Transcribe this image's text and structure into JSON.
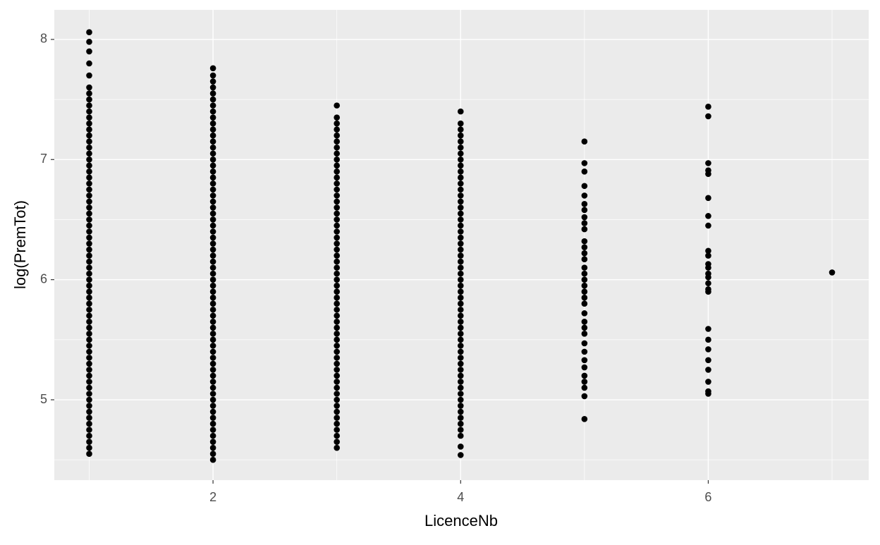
{
  "chart_data": {
    "type": "scatter",
    "color": "#000000",
    "x_label": "LicenceNb",
    "y_label": "log(PremTot)",
    "xlim": [
      0.718,
      7.296
    ],
    "ylim": [
      4.331,
      8.246
    ],
    "xticks": [
      2,
      4,
      6
    ],
    "yticks": [
      5,
      6,
      7,
      8
    ],
    "xminor": [
      1,
      3,
      5,
      7
    ],
    "yminor": [
      4.5,
      5.5,
      6.5,
      7.5
    ],
    "grid": true,
    "groups": [
      {
        "x": 1,
        "values": [
          4.55,
          4.6,
          4.65,
          4.7,
          4.75,
          4.8,
          4.85,
          4.9,
          4.95,
          5,
          5.05,
          5.1,
          5.15,
          5.2,
          5.25,
          5.3,
          5.35,
          5.4,
          5.45,
          5.5,
          5.55,
          5.6,
          5.65,
          5.7,
          5.75,
          5.8,
          5.85,
          5.9,
          5.95,
          6,
          6.05,
          6.1,
          6.15,
          6.2,
          6.25,
          6.3,
          6.35,
          6.4,
          6.45,
          6.5,
          6.55,
          6.6,
          6.65,
          6.7,
          6.75,
          6.8,
          6.85,
          6.9,
          6.95,
          7,
          7.05,
          7.1,
          7.15,
          7.2,
          7.25,
          7.3,
          7.35,
          7.4,
          7.45,
          7.5,
          7.55,
          7.6,
          7.7,
          7.8,
          7.9,
          7.98,
          8.06
        ]
      },
      {
        "x": 2,
        "values": [
          4.5,
          4.55,
          4.6,
          4.65,
          4.7,
          4.75,
          4.8,
          4.85,
          4.9,
          4.95,
          5,
          5.05,
          5.1,
          5.15,
          5.2,
          5.25,
          5.3,
          5.35,
          5.4,
          5.45,
          5.5,
          5.55,
          5.6,
          5.65,
          5.7,
          5.75,
          5.8,
          5.85,
          5.9,
          5.95,
          6,
          6.05,
          6.1,
          6.15,
          6.2,
          6.25,
          6.3,
          6.35,
          6.4,
          6.45,
          6.5,
          6.55,
          6.6,
          6.65,
          6.7,
          6.75,
          6.8,
          6.85,
          6.9,
          6.95,
          7,
          7.05,
          7.1,
          7.15,
          7.2,
          7.25,
          7.3,
          7.35,
          7.4,
          7.45,
          7.5,
          7.55,
          7.6,
          7.65,
          7.7,
          7.76
        ]
      },
      {
        "x": 3,
        "values": [
          4.6,
          4.65,
          4.7,
          4.75,
          4.8,
          4.85,
          4.9,
          4.95,
          5,
          5.05,
          5.1,
          5.15,
          5.2,
          5.25,
          5.3,
          5.35,
          5.4,
          5.45,
          5.5,
          5.55,
          5.6,
          5.65,
          5.7,
          5.75,
          5.8,
          5.85,
          5.9,
          5.95,
          6,
          6.05,
          6.1,
          6.15,
          6.2,
          6.25,
          6.3,
          6.35,
          6.4,
          6.45,
          6.5,
          6.55,
          6.6,
          6.65,
          6.7,
          6.75,
          6.8,
          6.85,
          6.9,
          6.95,
          7,
          7.05,
          7.1,
          7.15,
          7.2,
          7.25,
          7.3,
          7.35,
          7.45
        ]
      },
      {
        "x": 4,
        "values": [
          4.54,
          4.61,
          4.7,
          4.75,
          4.8,
          4.85,
          4.9,
          4.95,
          5,
          5.05,
          5.1,
          5.15,
          5.2,
          5.25,
          5.3,
          5.35,
          5.4,
          5.45,
          5.5,
          5.55,
          5.6,
          5.65,
          5.7,
          5.75,
          5.8,
          5.85,
          5.9,
          5.95,
          6,
          6.05,
          6.1,
          6.15,
          6.2,
          6.25,
          6.3,
          6.35,
          6.4,
          6.45,
          6.5,
          6.55,
          6.6,
          6.65,
          6.7,
          6.75,
          6.8,
          6.85,
          6.9,
          6.95,
          7,
          7.05,
          7.1,
          7.15,
          7.2,
          7.25,
          7.3,
          7.4
        ]
      },
      {
        "x": 5,
        "values": [
          4.84,
          5.03,
          5.1,
          5.15,
          5.2,
          5.27,
          5.33,
          5.4,
          5.47,
          5.55,
          5.6,
          5.65,
          5.72,
          5.8,
          5.85,
          5.9,
          5.95,
          6,
          6.05,
          6.1,
          6.17,
          6.22,
          6.27,
          6.32,
          6.42,
          6.47,
          6.52,
          6.58,
          6.63,
          6.7,
          6.78,
          6.9,
          6.97,
          7.15
        ]
      },
      {
        "x": 6,
        "values": [
          5.05,
          5.07,
          5.15,
          5.25,
          5.33,
          5.42,
          5.5,
          5.59,
          5.9,
          5.92,
          5.97,
          6.02,
          6.05,
          6.1,
          6.13,
          6.2,
          6.24,
          6.45,
          6.53,
          6.68,
          6.88,
          6.91,
          6.97,
          7.36,
          7.44
        ]
      },
      {
        "x": 7,
        "values": [
          6.06
        ]
      }
    ]
  }
}
